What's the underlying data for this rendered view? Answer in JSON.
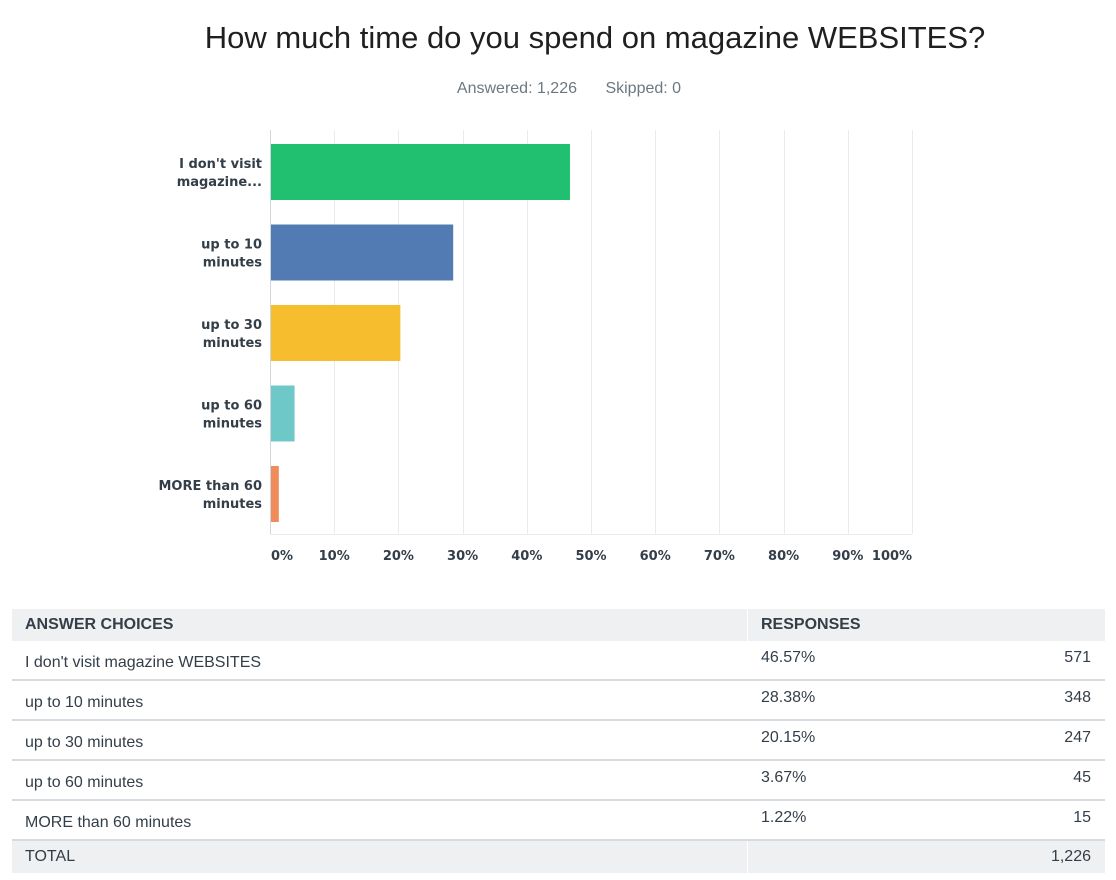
{
  "title": "How much time do you spend on magazine WEBSITES?",
  "answered": "Answered: 1,226",
  "skipped": "Skipped: 0",
  "chart_data": {
    "type": "bar",
    "orientation": "horizontal",
    "categories": [
      [
        "I don't visit",
        "magazine..."
      ],
      [
        "up to 10",
        "minutes"
      ],
      [
        "up to 30",
        "minutes"
      ],
      [
        "up to 60",
        "minutes"
      ],
      [
        "MORE than 60",
        "minutes"
      ]
    ],
    "values": [
      46.57,
      28.38,
      20.15,
      3.67,
      1.22
    ],
    "colors": [
      "#21c071",
      "#537bb3",
      "#f6be2e",
      "#6fc8c8",
      "#f08c5a"
    ],
    "xlim": [
      0,
      100
    ],
    "ticks": [
      "0%",
      "10%",
      "20%",
      "30%",
      "40%",
      "50%",
      "60%",
      "70%",
      "80%",
      "90%",
      "100%"
    ],
    "grid": true
  },
  "table": {
    "headers": [
      "ANSWER CHOICES",
      "RESPONSES"
    ],
    "rows": [
      {
        "choice": "I don't visit magazine WEBSITES",
        "pct": "46.57%",
        "count": "571"
      },
      {
        "choice": "up to 10 minutes",
        "pct": "28.38%",
        "count": "348"
      },
      {
        "choice": "up to 30 minutes",
        "pct": "20.15%",
        "count": "247"
      },
      {
        "choice": "up to 60 minutes",
        "pct": "3.67%",
        "count": "45"
      },
      {
        "choice": "MORE than 60 minutes",
        "pct": "1.22%",
        "count": "15"
      }
    ],
    "total_label": "TOTAL",
    "total_count": "1,226"
  }
}
